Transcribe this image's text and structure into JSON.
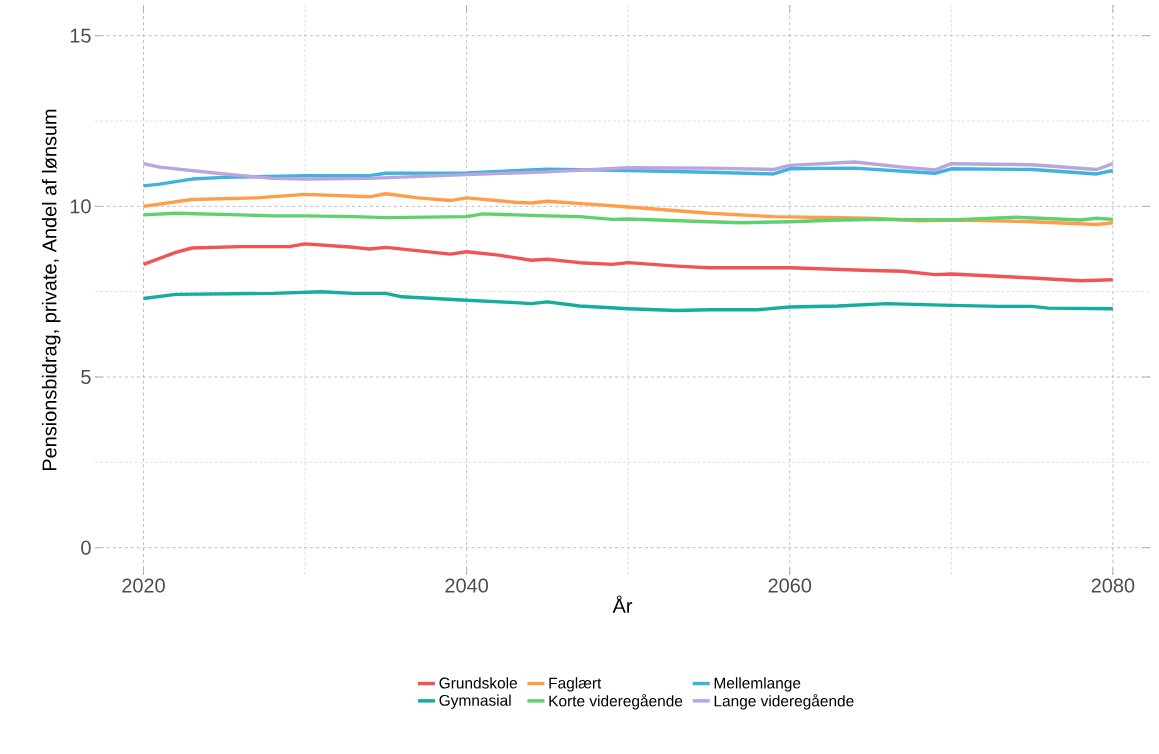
{
  "chart_data": {
    "type": "line",
    "xlabel": "År",
    "ylabel": "Pensionsbidrag, private, Andel af lønsum",
    "xlim": [
      2017,
      2082.3
    ],
    "ylim": [
      -0.8,
      15.9
    ],
    "xticks": [
      2020,
      2040,
      2060,
      2080
    ],
    "yticks": [
      0,
      5,
      10,
      15
    ],
    "grid": true,
    "legend": "bottom",
    "line_style": "solid",
    "marker": "none",
    "series": [
      {
        "name": "Grundskole",
        "color": "#f05454",
        "x": [
          2020,
          2022,
          2023,
          2026,
          2029,
          2030,
          2033,
          2034,
          2035,
          2037,
          2039,
          2040,
          2042,
          2044,
          2045,
          2047,
          2049,
          2050,
          2053,
          2055,
          2057,
          2060,
          2065,
          2067,
          2069,
          2070,
          2075,
          2078,
          2080
        ],
        "values": [
          8.3,
          8.65,
          8.78,
          8.82,
          8.82,
          8.9,
          8.8,
          8.75,
          8.8,
          8.7,
          8.6,
          8.67,
          8.57,
          8.42,
          8.45,
          8.35,
          8.3,
          8.35,
          8.25,
          8.2,
          8.2,
          8.2,
          8.12,
          8.1,
          8.0,
          8.02,
          7.9,
          7.82,
          7.85
        ]
      },
      {
        "name": "Gymnasial",
        "color": "#14ad9e",
        "x": [
          2020,
          2022,
          2028,
          2031,
          2033,
          2035,
          2036,
          2040,
          2043,
          2044,
          2045,
          2047,
          2050,
          2053,
          2055,
          2058,
          2060,
          2063,
          2066,
          2070,
          2073,
          2075,
          2076,
          2080
        ],
        "values": [
          7.3,
          7.42,
          7.45,
          7.5,
          7.45,
          7.45,
          7.35,
          7.25,
          7.18,
          7.15,
          7.2,
          7.08,
          7.0,
          6.95,
          6.97,
          6.97,
          7.05,
          7.08,
          7.15,
          7.1,
          7.07,
          7.07,
          7.02,
          7.0
        ]
      },
      {
        "name": "Faglært",
        "color": "#ff9e4a",
        "x": [
          2020,
          2023,
          2027,
          2030,
          2034,
          2035,
          2037,
          2039,
          2040,
          2043,
          2044,
          2045,
          2048,
          2050,
          2055,
          2059,
          2065,
          2068,
          2070,
          2075,
          2079,
          2080
        ],
        "values": [
          10.0,
          10.2,
          10.25,
          10.35,
          10.28,
          10.37,
          10.25,
          10.17,
          10.25,
          10.12,
          10.1,
          10.15,
          10.05,
          9.98,
          9.8,
          9.7,
          9.65,
          9.58,
          9.6,
          9.55,
          9.47,
          9.52
        ]
      },
      {
        "name": "Korte videregående",
        "color": "#5fd16e",
        "x": [
          2020,
          2022,
          2026,
          2028,
          2030,
          2033,
          2035,
          2040,
          2041,
          2045,
          2047,
          2049,
          2050,
          2055,
          2057,
          2060,
          2063,
          2066,
          2070,
          2074,
          2078,
          2079,
          2080
        ],
        "values": [
          9.75,
          9.8,
          9.75,
          9.72,
          9.72,
          9.7,
          9.67,
          9.7,
          9.78,
          9.72,
          9.7,
          9.62,
          9.63,
          9.55,
          9.52,
          9.55,
          9.6,
          9.62,
          9.6,
          9.68,
          9.6,
          9.65,
          9.62
        ]
      },
      {
        "name": "Mellemlange",
        "color": "#42b1e0",
        "x": [
          2020,
          2021,
          2023,
          2025,
          2030,
          2034,
          2035,
          2040,
          2045,
          2050,
          2055,
          2059,
          2060,
          2064,
          2068,
          2069,
          2070,
          2075,
          2079,
          2080
        ],
        "values": [
          10.6,
          10.65,
          10.8,
          10.85,
          10.9,
          10.9,
          10.97,
          10.98,
          11.09,
          11.05,
          11.0,
          10.95,
          11.1,
          11.12,
          11.0,
          10.97,
          11.1,
          11.08,
          10.95,
          11.05
        ]
      },
      {
        "name": "Lange videregående",
        "color": "#b8a6dc",
        "x": [
          2020,
          2021,
          2025,
          2028,
          2030,
          2034,
          2040,
          2045,
          2050,
          2055,
          2059,
          2060,
          2064,
          2067,
          2069,
          2070,
          2075,
          2079,
          2080
        ],
        "values": [
          11.25,
          11.15,
          10.95,
          10.82,
          10.8,
          10.82,
          10.93,
          11.01,
          11.13,
          11.12,
          11.08,
          11.2,
          11.3,
          11.15,
          11.07,
          11.25,
          11.22,
          11.08,
          11.25
        ]
      }
    ]
  }
}
